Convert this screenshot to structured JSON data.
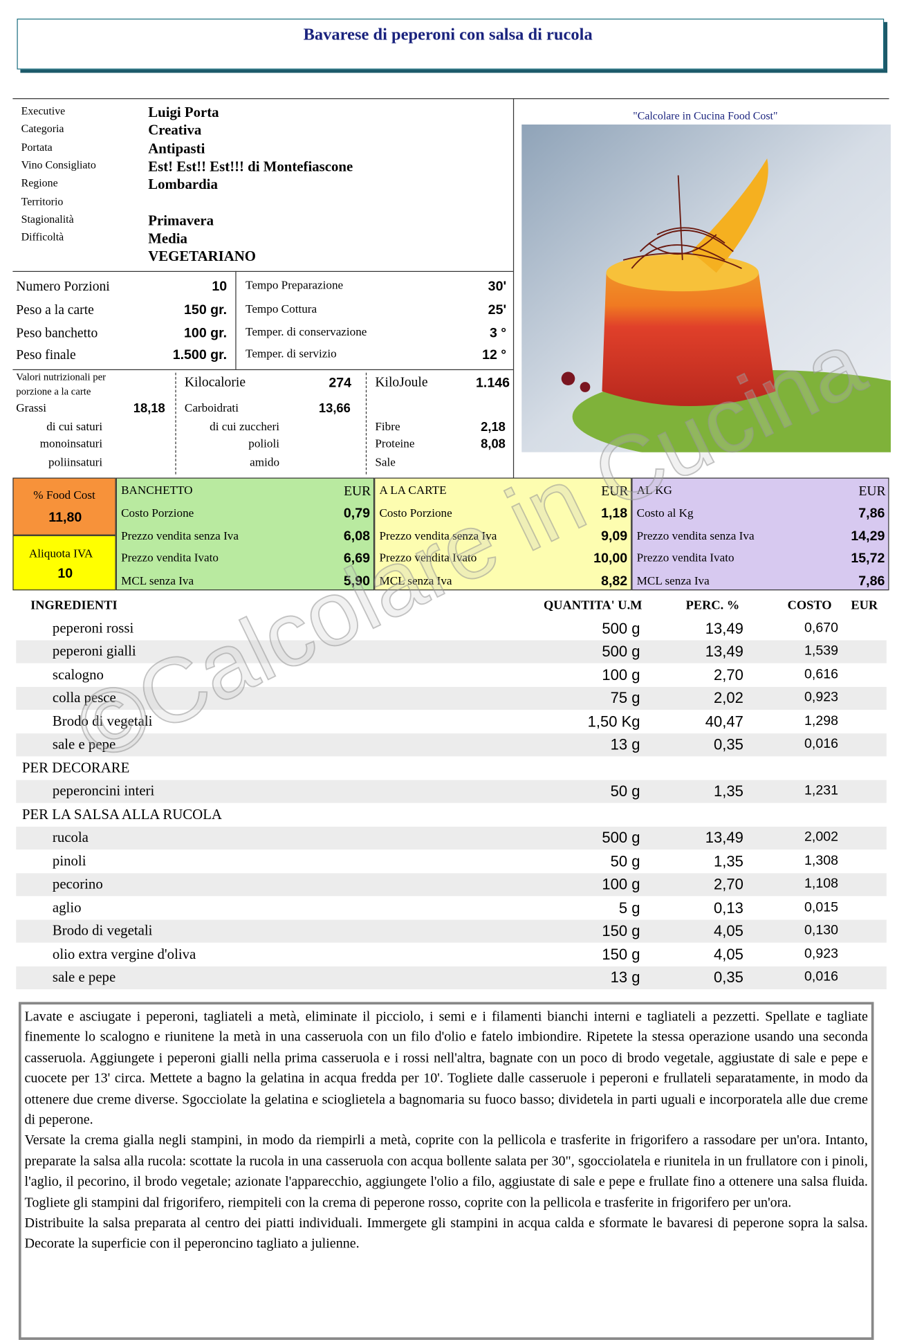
{
  "title": "Bavarese di peperoni con salsa di rucola",
  "info": {
    "rows": [
      {
        "label": "Executive",
        "value": "Luigi Porta"
      },
      {
        "label": "Categoria",
        "value": "Creativa"
      },
      {
        "label": "Portata",
        "value": "Antipasti"
      },
      {
        "label": "Vino Consigliato",
        "value": "Est! Est!! Est!!! di Montefiascone"
      },
      {
        "label": "Regione",
        "value": "Lombardia"
      },
      {
        "label": "Territorio"
      },
      {
        "label": "Stagionalità",
        "value": "Primavera"
      },
      {
        "label": "Difficoltà",
        "value": "Media"
      }
    ],
    "extra": "VEGETARIANO"
  },
  "photo_caption": "\"Calcolare in Cucina Food Cost\"",
  "watermark": "©Calcolare in Cucina",
  "weights": {
    "left": [
      [
        "Numero Porzioni",
        "10"
      ],
      [
        "Peso a la carte",
        "150 gr."
      ],
      [
        "Peso banchetto",
        "100 gr."
      ],
      [
        "Peso finale",
        "1.500 gr."
      ]
    ],
    "right": [
      [
        "Tempo Preparazione",
        "30'"
      ],
      [
        "Tempo Cottura",
        "25'"
      ],
      [
        "Temper. di conservazione",
        "3 °"
      ],
      [
        "Temper. di servizio",
        "12 °"
      ]
    ]
  },
  "nutrition": {
    "header": "Valori nutrizionali per porzione a la carte",
    "kcal": [
      "Kilocalorie",
      "274"
    ],
    "kj": [
      "KiloJoule",
      "1.146"
    ],
    "col1": [
      [
        "Grassi",
        "18,18"
      ],
      [
        "di cui saturi"
      ],
      [
        "monoinsaturi"
      ],
      [
        "poliinsaturi"
      ]
    ],
    "col2": [
      [
        "Carboidrati",
        "13,66"
      ],
      [
        "di cui zuccheri"
      ],
      [
        "polioli"
      ],
      [
        "amido"
      ]
    ],
    "col3": [
      [
        "Fibre",
        "2,18"
      ],
      [
        "Proteine",
        "8,08"
      ],
      [
        "Sale"
      ]
    ]
  },
  "costs": {
    "food_cost": [
      "% Food Cost",
      "11,80"
    ],
    "iva": [
      "Aliquota IVA",
      "10"
    ],
    "panels": [
      {
        "title": "BANCHETTO",
        "currency": "EUR",
        "rows": [
          [
            "Costo Porzione",
            "0,79"
          ],
          [
            "Prezzo vendita senza Iva",
            "6,08"
          ],
          [
            "Prezzo vendita Ivato",
            "6,69"
          ],
          [
            "MCL senza Iva",
            "5,90"
          ]
        ]
      },
      {
        "title": "A LA CARTE",
        "currency": "EUR",
        "rows": [
          [
            "Costo Porzione",
            "1,18"
          ],
          [
            "Prezzo vendita senza Iva",
            "9,09"
          ],
          [
            "Prezzo vendita Ivato",
            "10,00"
          ],
          [
            "MCL senza Iva",
            "8,82"
          ]
        ]
      },
      {
        "title": "AL KG",
        "currency": "EUR",
        "rows": [
          [
            "Costo al Kg",
            "7,86"
          ],
          [
            "Prezzo vendita senza Iva",
            "14,29"
          ],
          [
            "Prezzo vendita Ivato",
            "15,72"
          ],
          [
            "MCL senza Iva",
            "7,86"
          ]
        ]
      }
    ]
  },
  "ingredients": {
    "header": [
      "INGREDIENTI",
      "QUANTITA' U.M",
      "PERC. %",
      "COSTO",
      "EUR"
    ],
    "rows": [
      [
        "peperoni rossi",
        "500 g",
        "13,49",
        "0,670"
      ],
      [
        "peperoni gialli",
        "500 g",
        "13,49",
        "1,539"
      ],
      [
        "scalogno",
        "100 g",
        "2,70",
        "0,616"
      ],
      [
        "colla pesce",
        "75 g",
        "2,02",
        "0,923"
      ],
      [
        "Brodo  di vegetali",
        "1,50 Kg",
        "40,47",
        "1,298"
      ],
      [
        "sale e pepe",
        "13 g",
        "0,35",
        "0,016"
      ],
      [
        "PER DECORARE"
      ],
      [
        "peperoncini interi",
        "50 g",
        "1,35",
        "1,231"
      ],
      [
        "PER LA SALSA ALLA RUCOLA"
      ],
      [
        "rucola",
        "500 g",
        "13,49",
        "2,002"
      ],
      [
        "pinoli",
        "50 g",
        "1,35",
        "1,308"
      ],
      [
        "pecorino",
        "100 g",
        "2,70",
        "1,108"
      ],
      [
        "aglio",
        "5 g",
        "0,13",
        "0,015"
      ],
      [
        "Brodo  di vegetali",
        "150 g",
        "4,05",
        "0,130"
      ],
      [
        "olio extra vergine d'oliva",
        "150 g",
        "4,05",
        "0,923"
      ],
      [
        "sale e pepe",
        "13 g",
        "0,35",
        "0,016"
      ]
    ]
  },
  "instructions": [
    "Lavate e asciugate i peperoni, tagliateli a metà, eliminate il picciolo, i semi e i filamenti bianchi interni e tagliateli a pezzetti. Spellate e tagliate finemente lo scalogno e riunitene la metà in una casseruola con un filo d'olio e fatelo imbiondire. Ripetete la stessa operazione usando una seconda casseruola. Aggiungete i peperoni gialli nella prima casseruola e i rossi nell'altra, bagnate con un poco di brodo vegetale, aggiustate di sale e pepe e cuocete per 13' circa. Mettete a bagno la gelatina in acqua fredda per 10'. Togliete dalle casseruole i peperoni e frullateli separatamente, in modo da ottenere due creme diverse. Sgocciolate la gelatina e scioglietela a bagnomaria su fuoco basso; dividetela in parti uguali e incorporatela alle due creme di peperone.",
    "Versate la crema gialla negli stampini, in modo da riempirli a metà, coprite con la pellicola e trasferite in frigorifero a rassodare per un'ora. Intanto, preparate la salsa alla rucola: scottate la rucola in una casseruola con acqua bollente salata per 30\", sgocciolatela e riunitela in un frullatore con i pinoli, l'aglio, il pecorino, il brodo vegetale; azionate l'apparecchio, aggiungete l'olio a filo, aggiustate di sale e pepe e frullate fino a ottenere una salsa fluida. Togliete gli stampini dal frigorifero, riempiteli con la crema di peperone rosso, coprite con la pellicola e trasferite in frigorifero per un'ora.",
    "Distribuite la salsa preparata al centro dei piatti individuali. Immergete gli stampini in acqua calda e sformate le bavaresi di peperone sopra la salsa. Decorate la superficie con il peperoncino tagliato a julienne."
  ]
}
